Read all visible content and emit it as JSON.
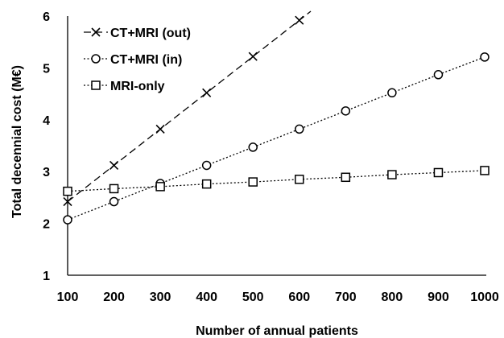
{
  "chart_data": {
    "type": "line",
    "xlabel": "Number of annual patients",
    "ylabel": "Total decennial cost  (M€)",
    "xlim": [
      100,
      1000
    ],
    "ylim": [
      1,
      6
    ],
    "x_ticks": [
      100,
      200,
      300,
      400,
      500,
      600,
      700,
      800,
      900,
      1000
    ],
    "y_ticks": [
      1,
      2,
      3,
      4,
      5,
      6
    ],
    "grid": false,
    "legend_position": "top-left",
    "series": [
      {
        "name": "CT+MRI (out)",
        "marker": "x",
        "line_style": "dashed",
        "x": [
          100,
          200,
          300,
          400,
          500,
          600
        ],
        "y": [
          2.42,
          3.12,
          3.82,
          4.52,
          5.22,
          5.92
        ]
      },
      {
        "name": "CT+MRI (in)",
        "marker": "circle",
        "line_style": "dotted",
        "x": [
          100,
          200,
          300,
          400,
          500,
          600,
          700,
          800,
          900,
          1000
        ],
        "y": [
          2.07,
          2.42,
          2.77,
          3.12,
          3.47,
          3.82,
          4.17,
          4.52,
          4.87,
          5.21
        ]
      },
      {
        "name": "MRI-only",
        "marker": "square",
        "line_style": "dotted",
        "x": [
          100,
          200,
          300,
          400,
          500,
          600,
          700,
          800,
          900,
          1000
        ],
        "y": [
          2.62,
          2.67,
          2.71,
          2.76,
          2.8,
          2.85,
          2.89,
          2.94,
          2.98,
          3.02
        ]
      }
    ]
  },
  "colors": {
    "line": "#000000",
    "background": "#ffffff"
  }
}
